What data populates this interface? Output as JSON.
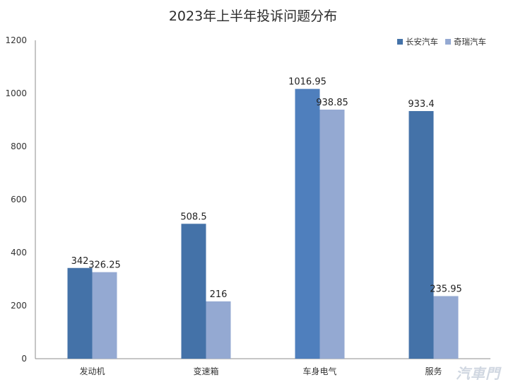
{
  "chart_data": {
    "type": "bar",
    "title": "2023年上半年投诉问题分布",
    "categories": [
      "发动机",
      "变速箱",
      "车身电气",
      "服务"
    ],
    "series": [
      {
        "name": "长安汽车",
        "values": [
          342,
          508.5,
          1016.95,
          933.4
        ],
        "labels": [
          "342",
          "508.5",
          "1016.95",
          "933.4"
        ],
        "color": "#4472a8"
      },
      {
        "name": "奇瑞汽车",
        "values": [
          326.25,
          216,
          938.85,
          235.95
        ],
        "labels": [
          "326.25",
          "216",
          "938.85",
          "235.95"
        ],
        "color": "#94a9d2"
      }
    ],
    "highlight_color": "#4f7fbd",
    "ylim": [
      0,
      1200
    ],
    "yticks": [
      "0",
      "200",
      "400",
      "600",
      "800",
      "1000",
      "1200"
    ],
    "legend_position": "top-right",
    "grid": false
  },
  "watermark": {
    "text": "汽車門"
  }
}
